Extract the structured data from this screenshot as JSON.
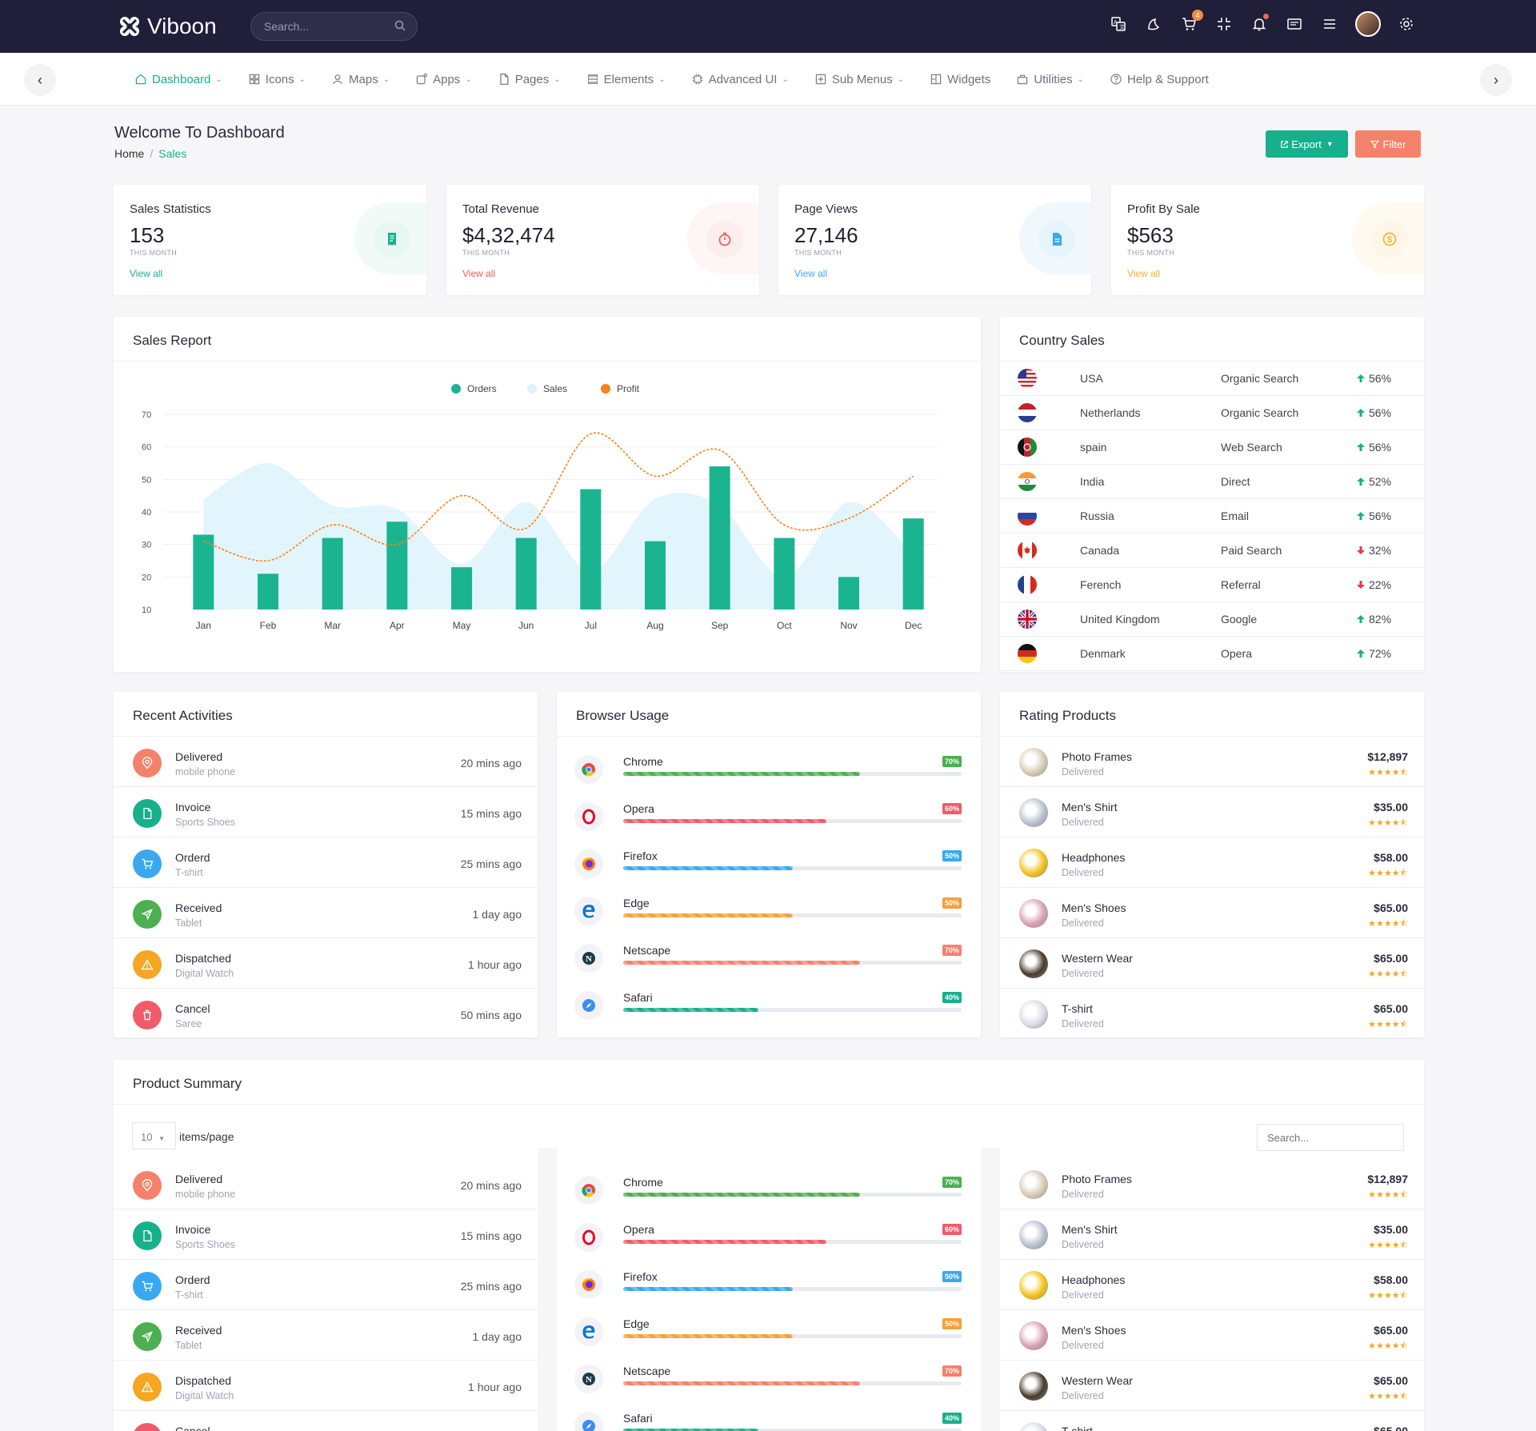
{
  "app": {
    "brand": "Viboon",
    "search_placeholder": "Search...",
    "cart_badge": "4"
  },
  "nav": {
    "items": [
      {
        "label": "Dashboard",
        "icon": "home-icon",
        "chevron": true,
        "active": true
      },
      {
        "label": "Icons",
        "icon": "grid-icon",
        "chevron": true
      },
      {
        "label": "Maps",
        "icon": "user-icon",
        "chevron": true
      },
      {
        "label": "Apps",
        "icon": "apps-icon",
        "chevron": true
      },
      {
        "label": "Pages",
        "icon": "file-icon",
        "chevron": true
      },
      {
        "label": "Elements",
        "icon": "layers-icon",
        "chevron": true
      },
      {
        "label": "Advanced UI",
        "icon": "cpu-icon",
        "chevron": true
      },
      {
        "label": "Sub Menus",
        "icon": "plus-square-icon",
        "chevron": true
      },
      {
        "label": "Widgets",
        "icon": "columns-icon",
        "chevron": false
      },
      {
        "label": "Utilities",
        "icon": "briefcase-icon",
        "chevron": true
      },
      {
        "label": "Help & Support",
        "icon": "help-icon",
        "chevron": false
      }
    ]
  },
  "page": {
    "title": "Welcome To Dashboard",
    "breadcrumb_home": "Home",
    "breadcrumb_current": "Sales",
    "export_label": "Export",
    "filter_label": "Filter"
  },
  "stats": [
    {
      "label": "Sales Statistics",
      "value": "153",
      "sub": "THIS MONTH",
      "link": "View all",
      "color": "#16b08c",
      "bg": "#e8f7f2",
      "icon": "receipt-icon"
    },
    {
      "label": "Total Revenue",
      "value": "$4,32,474",
      "sub": "THIS MONTH",
      "link": "View all",
      "color": "#f05a5a",
      "bg": "#fdeeee",
      "icon": "stopwatch-icon"
    },
    {
      "label": "Page Views",
      "value": "27,146",
      "sub": "THIS MONTH",
      "link": "View all",
      "color": "#3aa8f0",
      "bg": "#e6f4fd",
      "icon": "document-icon"
    },
    {
      "label": "Profit By Sale",
      "value": "$563",
      "sub": "THIS MONTH",
      "link": "View all",
      "color": "#f5b12a",
      "bg": "#fef6e6",
      "icon": "dollar-coin-icon"
    }
  ],
  "sales_report": {
    "title": "Sales Report"
  },
  "chart_data": {
    "type": "bar",
    "categories": [
      "Jan",
      "Feb",
      "Mar",
      "Apr",
      "May",
      "Jun",
      "Jul",
      "Aug",
      "Sep",
      "Oct",
      "Nov",
      "Dec"
    ],
    "ylim": [
      10,
      70
    ],
    "yticks": [
      10,
      20,
      30,
      40,
      50,
      60,
      70
    ],
    "legend_position": "top-center",
    "grid": true,
    "series": [
      {
        "name": "Orders",
        "type": "bar",
        "color": "#1ab590",
        "values": [
          33,
          21,
          32,
          37,
          23,
          32,
          47,
          31,
          54,
          32,
          20,
          38
        ]
      },
      {
        "name": "Sales",
        "type": "area",
        "color": "#d9f1fb",
        "values": [
          44,
          55,
          42,
          41,
          24,
          43,
          22,
          44,
          42,
          20,
          43,
          27
        ]
      },
      {
        "name": "Profit",
        "type": "line",
        "color": "#f7821b",
        "values": [
          31,
          25,
          36,
          30,
          45,
          35,
          64,
          51,
          59,
          36,
          38,
          51
        ]
      }
    ]
  },
  "country_sales": {
    "title": "Country Sales",
    "rows": [
      {
        "country": "USA",
        "source": "Organic Search",
        "pct": "56%",
        "trend": "up",
        "flag": "usa-flag"
      },
      {
        "country": "Netherlands",
        "source": "Organic Search",
        "pct": "56%",
        "trend": "up",
        "flag": "netherlands-flag"
      },
      {
        "country": "spain",
        "source": "Web Search",
        "pct": "56%",
        "trend": "up",
        "flag": "afghanistan-flag"
      },
      {
        "country": "India",
        "source": "Direct",
        "pct": "52%",
        "trend": "up",
        "flag": "india-flag"
      },
      {
        "country": "Russia",
        "source": "Email",
        "pct": "56%",
        "trend": "up",
        "flag": "russia-flag"
      },
      {
        "country": "Canada",
        "source": "Paid Search",
        "pct": "32%",
        "trend": "down",
        "flag": "canada-flag"
      },
      {
        "country": "Ferench",
        "source": "Referral",
        "pct": "22%",
        "trend": "down",
        "flag": "france-flag"
      },
      {
        "country": "United Kingdom",
        "source": "Google",
        "pct": "82%",
        "trend": "up",
        "flag": "uk-flag"
      },
      {
        "country": "Denmark",
        "source": "Opera",
        "pct": "72%",
        "trend": "up",
        "flag": "germany-flag"
      }
    ]
  },
  "recent_activities": {
    "title": "Recent Activities",
    "rows": [
      {
        "title": "Delivered",
        "sub": "mobile phone",
        "time": "20 mins ago",
        "color": "#f4826a",
        "icon": "location-pin-icon"
      },
      {
        "title": "Invoice",
        "sub": "Sports Shoes",
        "time": "15 mins ago",
        "color": "#16b08c",
        "icon": "file-icon"
      },
      {
        "title": "Orderd",
        "sub": "T-shirt",
        "time": "25 mins ago",
        "color": "#3aa8f0",
        "icon": "cart-icon"
      },
      {
        "title": "Received",
        "sub": "Tablet",
        "time": "1 day ago",
        "color": "#4caf50",
        "icon": "send-icon"
      },
      {
        "title": "Dispatched",
        "sub": "Digital Watch",
        "time": "1 hour ago",
        "color": "#f5a623",
        "icon": "warning-icon"
      },
      {
        "title": "Cancel",
        "sub": "Saree",
        "time": "50 mins ago",
        "color": "#f25a6a",
        "icon": "trash-icon"
      }
    ]
  },
  "browser_usage": {
    "title": "Browser Usage",
    "rows": [
      {
        "name": "Chrome",
        "pct_label": "70%",
        "pct": 0.7,
        "color": "#4caf50",
        "icon": "chrome-icon"
      },
      {
        "name": "Opera",
        "pct_label": "60%",
        "pct": 0.6,
        "color": "#f25a6a",
        "icon": "opera-icon"
      },
      {
        "name": "Firefox",
        "pct_label": "50%",
        "pct": 0.5,
        "color": "#3aa8f0",
        "icon": "firefox-icon"
      },
      {
        "name": "Edge",
        "pct_label": "50%",
        "pct": 0.5,
        "color": "#f5a03a",
        "icon": "edge-icon"
      },
      {
        "name": "Netscape",
        "pct_label": "70%",
        "pct": 0.7,
        "color": "#f4826a",
        "icon": "netscape-icon"
      },
      {
        "name": "Safari",
        "pct_label": "40%",
        "pct": 0.4,
        "color": "#16b08c",
        "icon": "safari-icon"
      }
    ]
  },
  "rating_products": {
    "title": "Rating Products",
    "rows": [
      {
        "name": "Photo Frames",
        "status": "Delivered",
        "price": "$12,897",
        "stars": 4.5,
        "thumb": "photo-frame-thumb",
        "tone": "#d8cbb5"
      },
      {
        "name": "Men's Shirt",
        "status": "Delivered",
        "price": "$35.00",
        "stars": 4.5,
        "thumb": "shirt-thumb",
        "tone": "#b9c0d0"
      },
      {
        "name": "Headphones",
        "status": "Delivered",
        "price": "$58.00",
        "stars": 4.5,
        "thumb": "headphones-thumb",
        "tone": "#f3c21a"
      },
      {
        "name": "Men's Shoes",
        "status": "Delivered",
        "price": "$65.00",
        "stars": 4.5,
        "thumb": "shoes-thumb",
        "tone": "#d9a0b4"
      },
      {
        "name": "Western Wear",
        "status": "Delivered",
        "price": "$65.00",
        "stars": 4.5,
        "thumb": "western-wear-thumb",
        "tone": "#4a3a2c"
      },
      {
        "name": "T-shirt",
        "status": "Delivered",
        "price": "$65.00",
        "stars": 4.5,
        "thumb": "tshirt-thumb",
        "tone": "#d9dce4"
      }
    ]
  },
  "product_summary": {
    "title": "Product Summary",
    "page_size": "10",
    "page_size_suffix": "items/page",
    "search_placeholder": "Search..."
  }
}
